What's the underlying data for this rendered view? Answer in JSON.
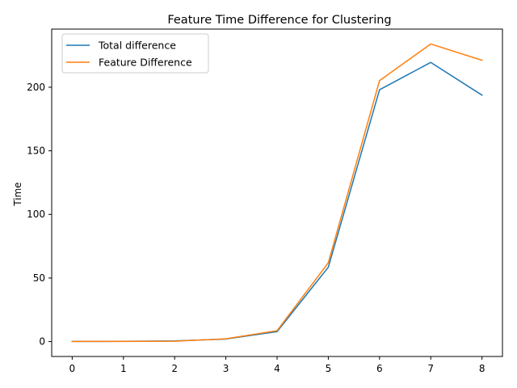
{
  "chart_data": {
    "type": "line",
    "title": "Feature Time Difference for Clustering",
    "xlabel": "",
    "ylabel": "Time",
    "x": [
      0,
      1,
      2,
      3,
      4,
      5,
      6,
      7,
      8
    ],
    "xticks": [
      0,
      1,
      2,
      3,
      4,
      5,
      6,
      7,
      8
    ],
    "yticks": [
      0,
      50,
      100,
      150,
      200
    ],
    "xlim": [
      -0.4,
      8.4
    ],
    "ylim": [
      -11.7,
      245.7
    ],
    "grid": false,
    "legend_position": "top-left",
    "series": [
      {
        "name": "Total difference",
        "color": "#1f77b4",
        "values": [
          0.1,
          0.2,
          0.5,
          2.0,
          7.8,
          58.5,
          198.0,
          219.5,
          193.8
        ]
      },
      {
        "name": "Feature Difference",
        "color": "#ff7f0e",
        "values": [
          0.1,
          0.1,
          0.3,
          2.2,
          8.6,
          62.0,
          205.2,
          234.0,
          221.2
        ]
      }
    ]
  }
}
